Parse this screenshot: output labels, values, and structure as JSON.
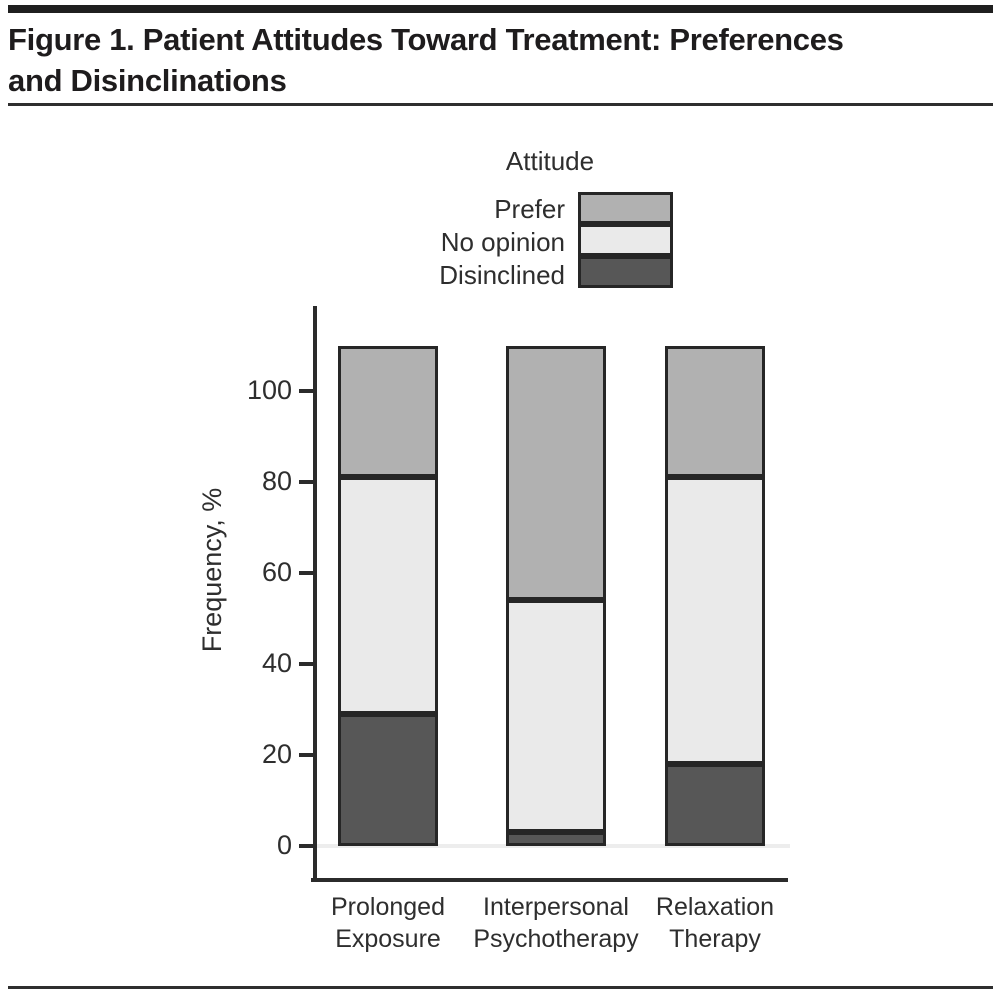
{
  "figure": {
    "title": "Figure 1. Patient Attitudes Toward Treatment: Preferences and Disinclinations",
    "title_lines": [
      "Figure 1. Patient Attitudes Toward Treatment: Preferences",
      "and Disinclinations"
    ]
  },
  "legend": {
    "title": "Attitude",
    "items": [
      {
        "label": "Prefer",
        "color": "#b1b1b1"
      },
      {
        "label": "No opinion",
        "color": "#eaeaea"
      },
      {
        "label": "Disinclined",
        "color": "#575757"
      }
    ]
  },
  "chart_data": {
    "type": "bar",
    "stacked": true,
    "title": "Figure 1. Patient Attitudes Toward Treatment: Preferences and Disinclinations",
    "categories": [
      "Prolonged Exposure",
      "Interpersonal Psychotherapy",
      "Relaxation Therapy"
    ],
    "series": [
      {
        "name": "Disinclined",
        "color": "#575757",
        "values": [
          29,
          3,
          18
        ]
      },
      {
        "name": "No opinion",
        "color": "#eaeaea",
        "values": [
          52,
          51,
          63
        ]
      },
      {
        "name": "Prefer",
        "color": "#b1b1b1",
        "values": [
          29,
          56,
          29
        ]
      }
    ],
    "stack_totals": [
      110,
      110,
      110
    ],
    "xlabel": "",
    "ylabel": "Frequency, %",
    "yticks": [
      0,
      20,
      40,
      60,
      80,
      100
    ],
    "ylim": [
      0,
      110
    ],
    "grid": false,
    "legend_title": "Attitude",
    "legend_position": "top-center",
    "legend_order_top_to_bottom": [
      "Prefer",
      "No opinion",
      "Disinclined"
    ],
    "bar_outline_color": "#262626",
    "axis_color": "#2b2b2b"
  }
}
